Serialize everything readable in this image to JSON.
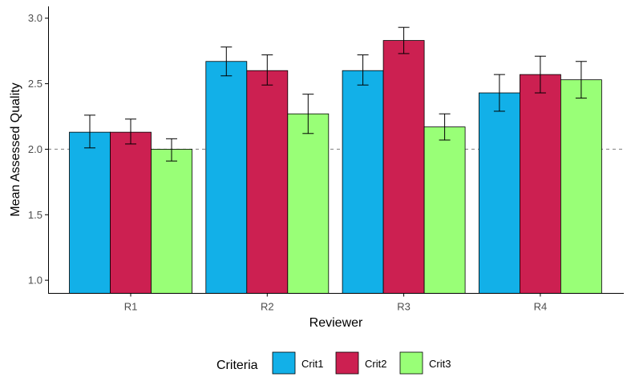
{
  "chart_data": {
    "type": "bar",
    "title": "",
    "xlabel": "Reviewer",
    "ylabel": "Mean Assessed Quality",
    "categories": [
      "R1",
      "R2",
      "R3",
      "R4"
    ],
    "ylim": [
      0.9,
      3.09
    ],
    "yticks": [
      1.0,
      1.5,
      2.0,
      2.5,
      3.0
    ],
    "ytick_labels": [
      "1.0",
      "1.5",
      "2.0",
      "2.5",
      "3.0"
    ],
    "reference_line": 2.0,
    "grid": false,
    "legend": {
      "title": "Criteria",
      "position": "bottom"
    },
    "series": [
      {
        "name": "Crit1",
        "color": "#12b0e8",
        "values": [
          2.13,
          2.67,
          2.6,
          2.43
        ],
        "error_low": [
          2.01,
          2.56,
          2.49,
          2.29
        ],
        "error_high": [
          2.26,
          2.78,
          2.72,
          2.57
        ]
      },
      {
        "name": "Crit2",
        "color": "#cc2051",
        "values": [
          2.13,
          2.6,
          2.83,
          2.57
        ],
        "error_low": [
          2.04,
          2.49,
          2.73,
          2.43
        ],
        "error_high": [
          2.23,
          2.72,
          2.93,
          2.71
        ]
      },
      {
        "name": "Crit3",
        "color": "#99ff77",
        "values": [
          2.0,
          2.27,
          2.17,
          2.53
        ],
        "error_low": [
          1.91,
          2.12,
          2.07,
          2.39
        ],
        "error_high": [
          2.08,
          2.42,
          2.27,
          2.67
        ]
      }
    ]
  }
}
